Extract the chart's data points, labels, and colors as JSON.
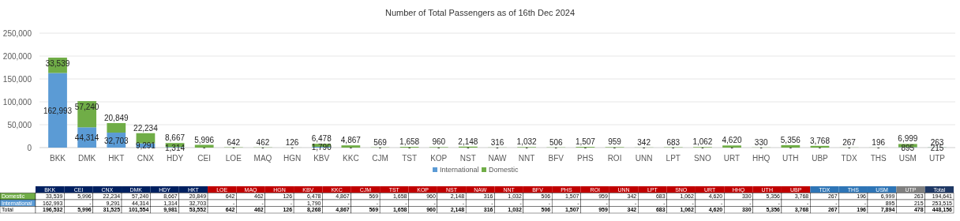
{
  "chart_data": [
    {
      "type": "bar",
      "title": "Number of Total Passengers as of 16th Dec 2024",
      "stacked": true,
      "categories": [
        "BKK",
        "DMK",
        "HKT",
        "CNX",
        "HDY",
        "CEI",
        "LOE",
        "MAQ",
        "HGN",
        "KBV",
        "KKC",
        "CJM",
        "TST",
        "KOP",
        "NST",
        "NAW",
        "NNT",
        "BFV",
        "PHS",
        "ROI",
        "UNN",
        "LPT",
        "SNO",
        "URT",
        "HHQ",
        "UTH",
        "UBP",
        "TDX",
        "THS",
        "USM",
        "UTP"
      ],
      "series": [
        {
          "name": "International",
          "color": "#5b9bd5",
          "values": [
            162993,
            44314,
            32703,
            9291,
            1314,
            null,
            null,
            null,
            null,
            1790,
            null,
            null,
            null,
            null,
            null,
            null,
            null,
            null,
            null,
            null,
            null,
            null,
            null,
            null,
            null,
            null,
            null,
            null,
            null,
            895,
            215
          ],
          "value_labels": [
            "162,993",
            "44,314",
            "32,703",
            "9,291",
            "1,314",
            "-",
            "-",
            "-",
            "-",
            "1,790",
            "-",
            "-",
            "-",
            "-",
            "-",
            "-",
            "-",
            "-",
            "-",
            "-",
            "-",
            "-",
            "-",
            "-",
            "-",
            "-",
            "-",
            "-",
            "-",
            "895",
            "215"
          ]
        },
        {
          "name": "Domestic",
          "color": "#70ad47",
          "values": [
            33539,
            57240,
            20849,
            22234,
            8667,
            5996,
            642,
            462,
            126,
            6478,
            4867,
            569,
            1658,
            960,
            2148,
            316,
            1032,
            506,
            1507,
            959,
            342,
            683,
            1062,
            4620,
            330,
            5356,
            3768,
            267,
            196,
            6999,
            263
          ],
          "value_labels": [
            "33,539",
            "57,240",
            "20,849",
            "22,234",
            "8,667",
            "5,996",
            "642",
            "462",
            "126",
            "6,478",
            "4,867",
            "569",
            "1,658",
            "960",
            "2,148",
            "316",
            "1,032",
            "506",
            "1,507",
            "959",
            "342",
            "683",
            "1,062",
            "4,620",
            "330",
            "5,356",
            "3,768",
            "267",
            "196",
            "6,999",
            "263"
          ]
        }
      ],
      "ylim": [
        0,
        250000
      ],
      "yticks": [
        {
          "value": 0,
          "label": "0"
        },
        {
          "value": 50000,
          "label": "50,000"
        },
        {
          "value": 100000,
          "label": "100,000"
        },
        {
          "value": 150000,
          "label": "150,000"
        },
        {
          "value": 200000,
          "label": "200,000"
        },
        {
          "value": 250000,
          "label": "250,000"
        }
      ],
      "grid": "y",
      "legend": "bottom"
    },
    {
      "type": "other",
      "categories": [
        "BKK",
        "CEI",
        "CNX",
        "DMK",
        "HDY",
        "HKT",
        "LOE",
        "MAQ",
        "HGN",
        "KBV",
        "KKC",
        "CJM",
        "TST",
        "KOP",
        "NST",
        "NAW",
        "NNT",
        "BFV",
        "PHS",
        "ROI",
        "UNN",
        "LPT",
        "SNO",
        "URT",
        "HHQ",
        "UTH",
        "UBP",
        "TDX",
        "THS",
        "USM",
        "UTP",
        "Total"
      ],
      "colors": [
        "#002060",
        "#002060",
        "#002060",
        "#002060",
        "#002060",
        "#002060",
        "#c00000",
        "#c00000",
        "#c00000",
        "#c00000",
        "#c00000",
        "#c00000",
        "#c00000",
        "#c00000",
        "#c00000",
        "#c00000",
        "#c00000",
        "#c00000",
        "#c00000",
        "#c00000",
        "#c00000",
        "#c00000",
        "#c00000",
        "#c00000",
        "#c00000",
        "#c00000",
        "#c00000",
        "#2e75b6",
        "#2e75b6",
        "#2e75b6",
        "#808080",
        "#1f3864"
      ],
      "series": [
        {
          "name": "Domestic",
          "values": [
            33539,
            5996,
            22234,
            57240,
            8667,
            20849,
            642,
            462,
            126,
            6478,
            4867,
            569,
            1658,
            960,
            2148,
            316,
            1032,
            506,
            1507,
            959,
            342,
            683,
            1062,
            4620,
            330,
            5356,
            3768,
            267,
            196,
            6999,
            263,
            194641
          ],
          "value_labels": [
            "33,539",
            "5,996",
            "22,234",
            "57,240",
            "8,667",
            "20,849",
            "642",
            "462",
            "126",
            "6,478",
            "4,867",
            "569",
            "1,658",
            "960",
            "2,148",
            "316",
            "1,032",
            "506",
            "1,507",
            "959",
            "342",
            "683",
            "1,062",
            "4,620",
            "330",
            "5,356",
            "3,768",
            "267",
            "196",
            "6,999",
            "263",
            "194,641"
          ]
        },
        {
          "name": "International",
          "values": [
            162993,
            null,
            9291,
            44314,
            1314,
            32703,
            null,
            null,
            null,
            1790,
            null,
            null,
            null,
            null,
            null,
            null,
            null,
            null,
            null,
            null,
            null,
            null,
            null,
            null,
            null,
            null,
            null,
            null,
            null,
            895,
            215,
            253515
          ],
          "value_labels": [
            "162,993",
            "-",
            "9,291",
            "44,314",
            "1,314",
            "32,703",
            "-",
            "-",
            "-",
            "1,790",
            "-",
            "-",
            "-",
            "-",
            "-",
            "-",
            "-",
            "-",
            "-",
            "-",
            "-",
            "-",
            "-",
            "-",
            "-",
            "-",
            "-",
            "-",
            "-",
            "895",
            "215",
            "253,515"
          ]
        },
        {
          "name": "Total",
          "values": [
            196532,
            5996,
            31525,
            101554,
            9981,
            53552,
            642,
            462,
            126,
            8268,
            4867,
            569,
            1658,
            960,
            2148,
            316,
            1032,
            506,
            1507,
            959,
            342,
            683,
            1062,
            4620,
            330,
            5356,
            3768,
            267,
            196,
            7894,
            478,
            448156
          ],
          "value_labels": [
            "196,532",
            "5,996",
            "31,525",
            "101,554",
            "9,981",
            "53,552",
            "642",
            "462",
            "126",
            "8,268",
            "4,867",
            "569",
            "1,658",
            "960",
            "2,148",
            "316",
            "1,032",
            "506",
            "1,507",
            "959",
            "342",
            "683",
            "1,062",
            "4,620",
            "330",
            "5,356",
            "3,768",
            "267",
            "196",
            "7,894",
            "478",
            "448,156"
          ]
        }
      ]
    }
  ]
}
